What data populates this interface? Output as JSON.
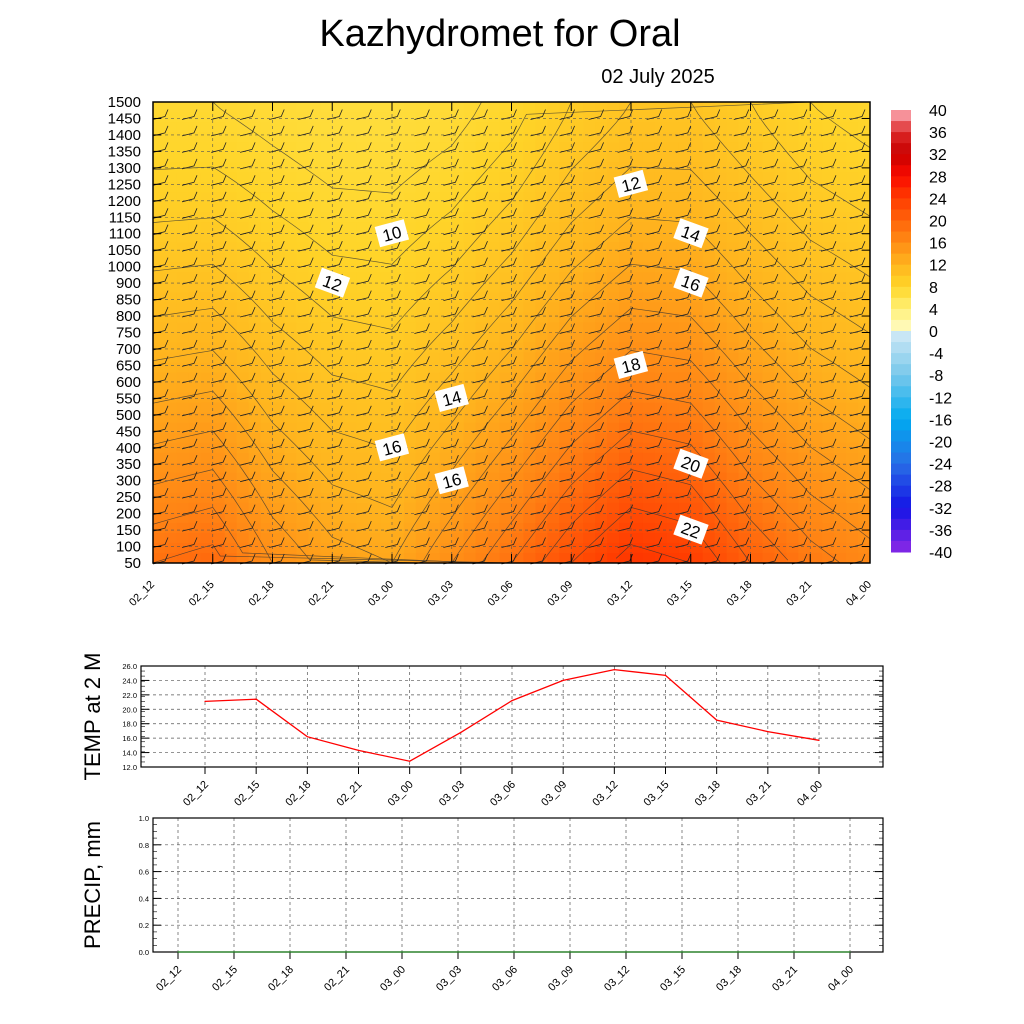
{
  "title": "Kazhydromet  for Oral",
  "subtitle": "02 July 2025",
  "chart_data": [
    {
      "type": "heatmap",
      "name": "",
      "x_ticks": [
        "02_12",
        "02_15",
        "02_18",
        "02_21",
        "03_00",
        "03_03",
        "03_06",
        "03_09",
        "03_12",
        "03_15",
        "03_18",
        "03_21",
        "04_00"
      ],
      "y_ticks": [
        1500,
        1450,
        1400,
        1350,
        1300,
        1250,
        1200,
        1150,
        1100,
        1050,
        1000,
        900,
        850,
        800,
        750,
        700,
        650,
        600,
        550,
        500,
        450,
        400,
        350,
        300,
        250,
        200,
        150,
        100,
        50
      ],
      "colorbar_ticks": [
        40,
        36,
        32,
        28,
        24,
        20,
        16,
        12,
        8,
        4,
        0,
        -4,
        -8,
        -12,
        -16,
        -20,
        -24,
        -28,
        -32,
        -36,
        -40
      ],
      "contour_labels": [
        {
          "text": "10",
          "x": "03_00",
          "y": 1100
        },
        {
          "text": "12",
          "x": "02_21",
          "y": 900
        },
        {
          "text": "12",
          "x": "03_12",
          "y": 1250
        },
        {
          "text": "14",
          "x": "03_15",
          "y": 1100
        },
        {
          "text": "14",
          "x": "03_03",
          "y": 550
        },
        {
          "text": "16",
          "x": "03_15",
          "y": 900
        },
        {
          "text": "16",
          "x": "03_00",
          "y": 400
        },
        {
          "text": "16",
          "x": "03_03",
          "y": 300
        },
        {
          "text": "18",
          "x": "03_12",
          "y": 650
        },
        {
          "text": "20",
          "x": "03_15",
          "y": 350
        },
        {
          "text": "22",
          "x": "03_15",
          "y": 150
        }
      ],
      "surface_temp": [
        19,
        19.5,
        17,
        15.5,
        15,
        17,
        19,
        21,
        22.5,
        22,
        20,
        18.5,
        17.5
      ],
      "top_temp": [
        9,
        9,
        8.5,
        8,
        8,
        8.5,
        9.5,
        11,
        12,
        12,
        11,
        10,
        9.5
      ],
      "colors": {
        "warm_low": "#ff3300",
        "warm_high": "#ffd11a"
      }
    },
    {
      "type": "line",
      "ylabel": "TEMP at 2 M",
      "x_ticks": [
        "02_12",
        "02_15",
        "02_18",
        "02_21",
        "03_00",
        "03_03",
        "03_06",
        "03_09",
        "03_12",
        "03_15",
        "03_18",
        "03_21",
        "04_00"
      ],
      "y_ticks": [
        "26.0",
        "24.0",
        "22.0",
        "20.0",
        "18.0",
        "16.0",
        "14.0",
        "12.0"
      ],
      "ylim": [
        12,
        26
      ],
      "series": [
        {
          "values": [
            21.1,
            21.4,
            16.2,
            14.3,
            12.8,
            16.8,
            21.2,
            24.0,
            25.5,
            24.7,
            18.5,
            16.9,
            15.7
          ],
          "color": "#ff0000"
        }
      ]
    },
    {
      "type": "line",
      "ylabel": "PRECIP, mm",
      "x_ticks": [
        "02_12",
        "02_15",
        "02_18",
        "02_21",
        "03_00",
        "03_03",
        "03_06",
        "03_09",
        "03_12",
        "03_15",
        "03_18",
        "03_21",
        "04_00"
      ],
      "y_ticks": [
        "1.0",
        "0.8",
        "0.6",
        "0.4",
        "0.2",
        "0.0"
      ],
      "ylim": [
        0,
        1
      ],
      "series": [
        {
          "values": [
            0,
            0,
            0,
            0,
            0,
            0,
            0,
            0,
            0,
            0,
            0,
            0,
            0
          ],
          "color": "#228822"
        }
      ]
    }
  ]
}
